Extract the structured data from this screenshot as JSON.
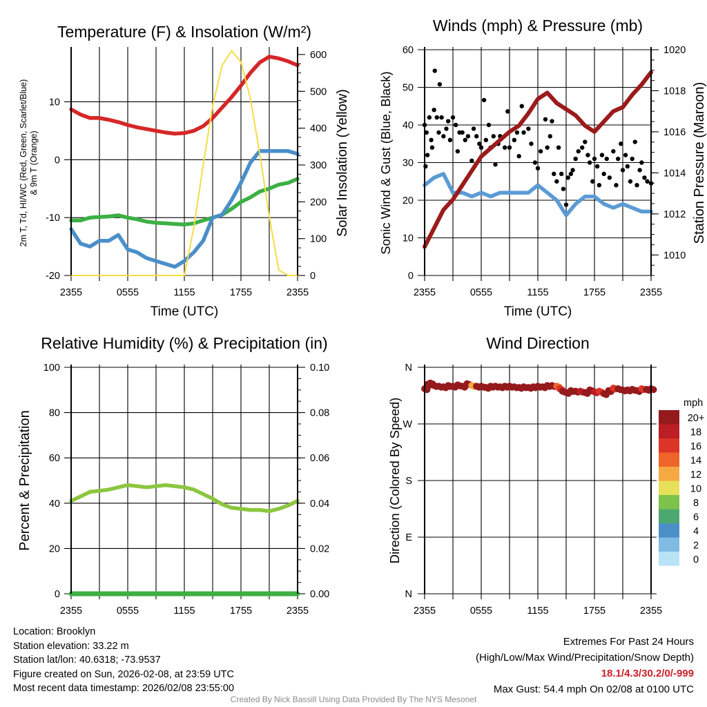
{
  "chart_data": [
    {
      "type": "line",
      "title": "Temperature (F) & Insolation (W/m²)",
      "xlabel": "Time (UTC)",
      "ylabel_lines": [
        "2m T, Td, HI/WC (Red, Green, Scarlet/Blue)",
        "& 9m T (Orange)"
      ],
      "ylabel_right": "Solar Insolation (Yellow)",
      "x_hours": [
        0,
        1,
        2,
        3,
        4,
        5,
        6,
        7,
        8,
        9,
        10,
        11,
        12,
        13,
        14,
        15,
        16,
        17,
        18,
        19,
        20,
        21,
        22,
        23,
        24
      ],
      "xticklabels": [
        "2355",
        "0555",
        "1155",
        "1755",
        "2355"
      ],
      "ylim": [
        -20,
        19
      ],
      "yticks": [
        -20,
        -10,
        0,
        10
      ],
      "ylim_right": [
        0,
        613
      ],
      "yticks_right": [
        0,
        100,
        200,
        300,
        400,
        500,
        600
      ],
      "series": [
        {
          "name": "2m Temperature",
          "color": "#d62728",
          "axis": "left",
          "values": [
            8.7,
            7.8,
            7.2,
            7.2,
            6.9,
            6.5,
            6.0,
            5.6,
            5.3,
            5.0,
            4.7,
            4.5,
            4.6,
            5.0,
            5.8,
            7.2,
            9.0,
            10.8,
            12.8,
            15.0,
            16.8,
            17.8,
            17.5,
            17.0,
            16.3
          ]
        },
        {
          "name": "Dewpoint",
          "color": "#3cb043",
          "axis": "left",
          "values": [
            -10.5,
            -10.5,
            -10.0,
            -9.9,
            -9.8,
            -9.6,
            -10.0,
            -10.3,
            -10.7,
            -10.9,
            -11.0,
            -11.1,
            -11.2,
            -11.0,
            -10.5,
            -10.0,
            -9.5,
            -8.5,
            -7.3,
            -6.5,
            -5.5,
            -5.0,
            -4.3,
            -4.0,
            -3.3
          ]
        },
        {
          "name": "Wind Chill",
          "color": "#4a8fca",
          "axis": "left",
          "values": [
            -12.0,
            -14.5,
            -15.0,
            -14.0,
            -14.0,
            -13.0,
            -15.5,
            -16.0,
            -17.0,
            -17.5,
            -18.0,
            -18.5,
            -17.5,
            -16.0,
            -14.0,
            -10.0,
            -9.5,
            -7.0,
            -4.0,
            -0.5,
            1.5,
            1.5,
            1.5,
            1.5,
            1.0
          ]
        },
        {
          "name": "Solar Insolation",
          "color": "#f7dc43",
          "axis": "right",
          "values": [
            0,
            0,
            0,
            0,
            0,
            0,
            0,
            0,
            0,
            0,
            0,
            0,
            0,
            130,
            300,
            460,
            570,
            610,
            580,
            480,
            330,
            160,
            15,
            0,
            0
          ]
        }
      ]
    },
    {
      "type": "line",
      "title": "Winds (mph) & Pressure (mb)",
      "xlabel": "Time (UTC)",
      "ylabel": "Sonic Wind & Gust (Blue, Black)",
      "ylabel_right": "Station Pressure (Maroon)",
      "x_hours": [
        0,
        1,
        2,
        3,
        4,
        5,
        6,
        7,
        8,
        9,
        10,
        11,
        12,
        13,
        14,
        15,
        16,
        17,
        18,
        19,
        20,
        21,
        22,
        23,
        24
      ],
      "xticklabels": [
        "2355",
        "0555",
        "1155",
        "1755",
        "2355"
      ],
      "ylim": [
        0,
        60
      ],
      "yticks": [
        0,
        10,
        20,
        30,
        40,
        50,
        60
      ],
      "ylim_right": [
        1009,
        1020
      ],
      "yticks_right": [
        1010,
        1012,
        1014,
        1016,
        1018,
        1020
      ],
      "series": [
        {
          "name": "Sonic Wind",
          "color": "#5b9bd5",
          "axis": "left",
          "values": [
            24,
            26,
            27,
            22,
            22,
            21,
            22,
            21,
            22,
            22,
            22,
            22,
            24,
            22,
            20,
            16,
            19,
            21,
            21,
            19,
            18,
            19,
            18,
            17,
            17
          ]
        },
        {
          "name": "Station Pressure",
          "color": "#9b1b1b",
          "axis": "right",
          "values": [
            1010.4,
            1011.3,
            1012.2,
            1012.7,
            1013.4,
            1014.1,
            1014.8,
            1015.2,
            1015.6,
            1016.0,
            1016.3,
            1016.9,
            1017.6,
            1017.9,
            1017.4,
            1017.1,
            1016.8,
            1016.3,
            1016.0,
            1016.5,
            1017.0,
            1017.2,
            1017.8,
            1018.3,
            1018.9
          ]
        }
      ],
      "gusts": {
        "name": "Gust",
        "color": "#000000",
        "points": [
          [
            0,
            40
          ],
          [
            0.1,
            29
          ],
          [
            0.2,
            38
          ],
          [
            0.3,
            32
          ],
          [
            0.5,
            42
          ],
          [
            0.7,
            36
          ],
          [
            0.8,
            34
          ],
          [
            1.0,
            44
          ],
          [
            1.08,
            54.4
          ],
          [
            1.3,
            42
          ],
          [
            1.5,
            38
          ],
          [
            1.6,
            50.8
          ],
          [
            1.8,
            42
          ],
          [
            2.0,
            37
          ],
          [
            2.3,
            39
          ],
          [
            2.5,
            41
          ],
          [
            2.7,
            36
          ],
          [
            3.0,
            42
          ],
          [
            3.3,
            40
          ],
          [
            3.5,
            33
          ],
          [
            3.7,
            38
          ],
          [
            4.0,
            38
          ],
          [
            4.3,
            36
          ],
          [
            4.6,
            37
          ],
          [
            5.0,
            30.5
          ],
          [
            5.2,
            39
          ],
          [
            5.5,
            37
          ],
          [
            5.8,
            35
          ],
          [
            6.0,
            34
          ],
          [
            6.3,
            46.6
          ],
          [
            6.5,
            36
          ],
          [
            6.8,
            40
          ],
          [
            7.0,
            34
          ],
          [
            7.3,
            37
          ],
          [
            7.5,
            29.5
          ],
          [
            7.8,
            35
          ],
          [
            8.0,
            37
          ],
          [
            8.5,
            34
          ],
          [
            8.8,
            43.6
          ],
          [
            9.0,
            34
          ],
          [
            9.5,
            36
          ],
          [
            9.8,
            38
          ],
          [
            10.0,
            31.7
          ],
          [
            10.3,
            45
          ],
          [
            10.5,
            38
          ],
          [
            11,
            39
          ],
          [
            11.3,
            35
          ],
          [
            11.7,
            30
          ],
          [
            12,
            28.5
          ],
          [
            12.3,
            33
          ],
          [
            12.8,
            41.5
          ],
          [
            13,
            34
          ],
          [
            13.3,
            37
          ],
          [
            13.5,
            41
          ],
          [
            13.7,
            27
          ],
          [
            14,
            25
          ],
          [
            14.2,
            34
          ],
          [
            14.5,
            27
          ],
          [
            14.7,
            23
          ],
          [
            15,
            18.8
          ],
          [
            15.2,
            26
          ],
          [
            15.5,
            27
          ],
          [
            15.7,
            28
          ],
          [
            16,
            31
          ],
          [
            16.3,
            33
          ],
          [
            16.7,
            34
          ],
          [
            17,
            35.5
          ],
          [
            17.3,
            32
          ],
          [
            17.5,
            30
          ],
          [
            17.8,
            25
          ],
          [
            18,
            31
          ],
          [
            18.3,
            29
          ],
          [
            18.5,
            24
          ],
          [
            18.8,
            32
          ],
          [
            19,
            27
          ],
          [
            19.3,
            31
          ],
          [
            19.6,
            26
          ],
          [
            20,
            33
          ],
          [
            20.3,
            24
          ],
          [
            20.5,
            31
          ],
          [
            20.8,
            35
          ],
          [
            21,
            28
          ],
          [
            21.3,
            32
          ],
          [
            21.5,
            29
          ],
          [
            21.8,
            25
          ],
          [
            22,
            31
          ],
          [
            22.3,
            35.5
          ],
          [
            22.5,
            24
          ],
          [
            22.8,
            28
          ],
          [
            23,
            30
          ],
          [
            23.3,
            26
          ],
          [
            23.6,
            25
          ],
          [
            24,
            24.5
          ]
        ]
      }
    },
    {
      "type": "line",
      "title": "Relative Humidity (%) & Precipitation (in)",
      "ylabel": "Percent & Precipitation",
      "x_hours": [
        0,
        1,
        2,
        3,
        4,
        5,
        6,
        7,
        8,
        9,
        10,
        11,
        12,
        13,
        14,
        15,
        16,
        17,
        18,
        19,
        20,
        21,
        22,
        23,
        24
      ],
      "xticklabels": [
        "2355",
        "0555",
        "1155",
        "1755",
        "2355"
      ],
      "ylim": [
        0,
        100
      ],
      "yticks": [
        0,
        20,
        40,
        60,
        80,
        100
      ],
      "ylim_right": [
        0,
        0.1
      ],
      "yticks_right": [
        "0.00",
        "0.02",
        "0.04",
        "0.06",
        "0.08",
        "0.10"
      ],
      "series": [
        {
          "name": "Relative Humidity",
          "color": "#8cc63f",
          "axis": "left",
          "values": [
            41,
            43,
            45,
            45.5,
            46,
            47,
            48,
            47.5,
            47,
            47.5,
            48,
            47.5,
            47,
            46,
            44,
            42,
            39.5,
            38,
            37.5,
            37,
            37,
            36.5,
            37.5,
            39,
            41
          ]
        },
        {
          "name": "Precipitation",
          "color": "#3cb043",
          "axis": "right",
          "values": [
            0,
            0,
            0,
            0,
            0,
            0,
            0,
            0,
            0,
            0,
            0,
            0,
            0,
            0,
            0,
            0,
            0,
            0,
            0,
            0,
            0,
            0,
            0,
            0,
            0
          ]
        }
      ]
    },
    {
      "type": "scatter",
      "title": "Wind Direction",
      "ylabel": "Direction (Colored By Speed)",
      "xticklabels": [
        "2355",
        "0555",
        "1155",
        "1755",
        "2355"
      ],
      "ylim": [
        0,
        360
      ],
      "yticklabels": [
        "N",
        "E",
        "S",
        "W",
        "N"
      ],
      "points": [
        [
          0,
          326,
          20
        ],
        [
          0.3,
          333,
          20
        ],
        [
          0.6,
          335,
          20
        ],
        [
          1,
          331,
          20
        ],
        [
          1.5,
          330,
          20
        ],
        [
          2,
          329,
          20
        ],
        [
          2.5,
          331,
          20
        ],
        [
          3,
          330,
          20
        ],
        [
          3.5,
          332,
          20
        ],
        [
          4,
          330,
          20
        ],
        [
          4.5,
          334,
          20
        ],
        [
          5,
          331,
          12
        ],
        [
          5.5,
          330,
          20
        ],
        [
          6,
          330,
          20
        ],
        [
          6.5,
          328,
          20
        ],
        [
          7,
          330,
          20
        ],
        [
          7.5,
          330,
          20
        ],
        [
          8,
          329,
          20
        ],
        [
          8.5,
          330,
          20
        ],
        [
          9,
          330,
          20
        ],
        [
          9.5,
          329,
          20
        ],
        [
          10,
          328,
          20
        ],
        [
          10.5,
          329,
          20
        ],
        [
          11,
          328,
          20
        ],
        [
          11.5,
          329,
          20
        ],
        [
          12,
          330,
          20
        ],
        [
          12.5,
          329,
          20
        ],
        [
          13,
          331,
          20
        ],
        [
          13.5,
          331,
          20
        ],
        [
          14,
          330,
          14
        ],
        [
          14.3,
          326,
          16
        ],
        [
          14.6,
          322,
          20
        ],
        [
          15,
          320,
          20
        ],
        [
          15.5,
          323,
          20
        ],
        [
          16,
          322,
          20
        ],
        [
          16.5,
          322,
          18
        ],
        [
          17,
          320,
          20
        ],
        [
          17.5,
          324,
          20
        ],
        [
          18,
          321,
          18
        ],
        [
          18.5,
          322,
          16
        ],
        [
          19,
          318,
          20
        ],
        [
          19.5,
          323,
          20
        ],
        [
          20,
          327,
          16
        ],
        [
          20.5,
          326,
          20
        ],
        [
          21,
          324,
          20
        ],
        [
          21.5,
          324,
          20
        ],
        [
          22,
          325,
          20
        ],
        [
          22.5,
          323,
          20
        ],
        [
          23,
          326,
          16
        ],
        [
          23.5,
          325,
          20
        ],
        [
          24,
          326,
          20
        ]
      ],
      "colorbar": {
        "title": "mph",
        "labels": [
          "20+",
          "18",
          "16",
          "14",
          "12",
          "10",
          "8",
          "6",
          "4",
          "2",
          "0"
        ],
        "colors": [
          "#951a1d",
          "#bb1e24",
          "#dc3528",
          "#ef6429",
          "#f6a843",
          "#e7e05a",
          "#7cc24b",
          "#4ba870",
          "#4a8fc6",
          "#7fbbe3",
          "#b8e3f7"
        ]
      }
    }
  ],
  "footer": {
    "location": "Location: Brooklyn",
    "elevation": "Station elevation: 33.22 m",
    "latlon": "Station lat/lon: 40.6318; -73.9537",
    "created": "Figure created on Sun, 2026-02-08, at 23:59 UTC",
    "recent": "Most recent data timestamp: 2026/02/08 23:55:00",
    "extremes_title": "Extremes For Past 24 Hours",
    "extremes_legend": "(High/Low/Max Wind/Precipitation/Snow Depth)",
    "extremes_values": "18.1/4.3/30.2/0/-999",
    "max_gust": "Max Gust: 54.4 mph On 02/08 at 0100 UTC",
    "credit": "Created By Nick Bassill Using Data Provided By The NYS Mesonet"
  }
}
